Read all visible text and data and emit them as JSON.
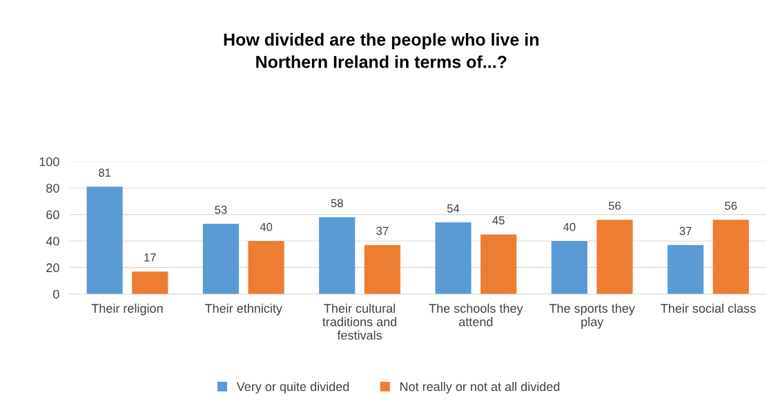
{
  "chart_data": {
    "type": "bar",
    "title": "How divided are the people who live in\nNorthern Ireland in terms of...?",
    "categories": [
      "Their religion",
      "Their ethnicity",
      "Their cultural\ntraditions and\nfestivals",
      "The schools they\nattend",
      "The sports they\nplay",
      "Their social class"
    ],
    "series": [
      {
        "name": "Very or quite divided",
        "color": "#5b9bd5",
        "values": [
          81,
          53,
          58,
          54,
          40,
          37
        ]
      },
      {
        "name": "Not really or not at all divided",
        "color": "#ed7d31",
        "values": [
          17,
          40,
          37,
          45,
          56,
          56
        ]
      }
    ],
    "ylim": [
      0,
      100
    ],
    "yticks": [
      0,
      20,
      40,
      60,
      80,
      100
    ],
    "grid": "y",
    "legend": "bottom",
    "data_labels": true
  }
}
